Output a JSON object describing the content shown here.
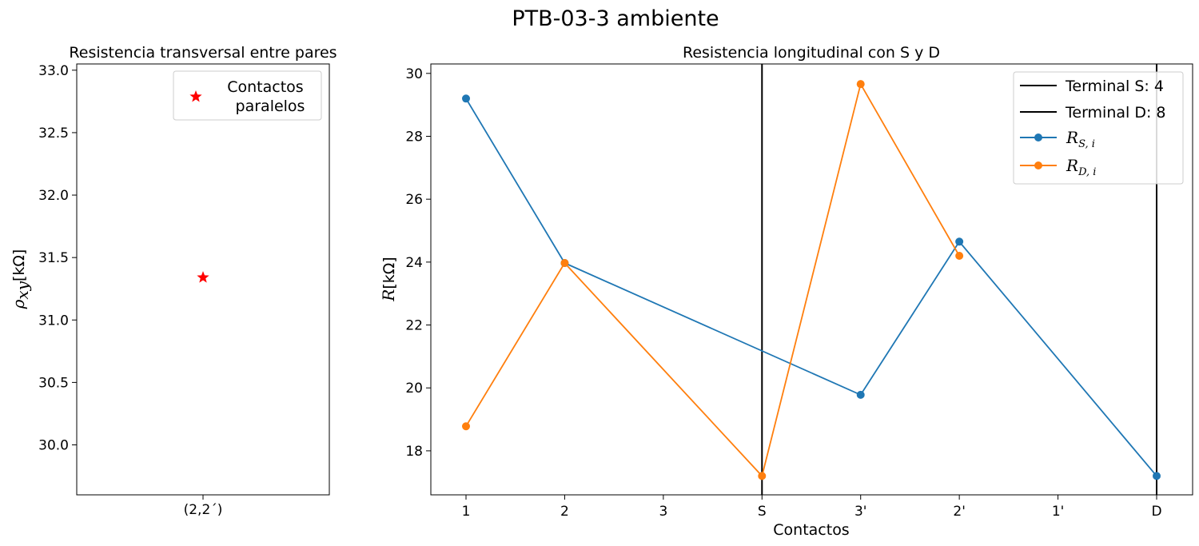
{
  "figure": {
    "suptitle": "PTB-03-3 ambiente"
  },
  "chart_data": [
    {
      "type": "scatter",
      "title": "Resistencia transversal entre pares",
      "xlabel": "",
      "ylabel": "ρxy[kΩ]",
      "ylabel_parts": {
        "symbol": "ρ",
        "sub": "xy",
        "unit": "[kΩ]"
      },
      "categories": [
        "(2,2´)"
      ],
      "ylim": [
        29.6,
        33.05
      ],
      "yticks": [
        "30.0",
        "30.5",
        "31.0",
        "31.5",
        "32.0",
        "32.5",
        "33.0"
      ],
      "series": [
        {
          "name": "Contactos\nparalelos",
          "name_lines": [
            "Contactos",
            "paralelos"
          ],
          "values": [
            31.34
          ],
          "color": "#ff0000",
          "marker": "star"
        }
      ],
      "grid": false,
      "legend": "top-right"
    },
    {
      "type": "line",
      "title": "Resistencia longitudinal con S y D",
      "xlabel": "Contactos",
      "ylabel": "R[kΩ]",
      "ylabel_parts": {
        "symbol": "R",
        "unit": "[kΩ]"
      },
      "categories": [
        "1",
        "2",
        "3",
        "S",
        "3'",
        "2'",
        "1'",
        "D"
      ],
      "ylim": [
        16.6,
        30.3
      ],
      "yticks": [
        "18",
        "20",
        "22",
        "24",
        "26",
        "28",
        "30"
      ],
      "vlines": [
        {
          "name": "Terminal S: 4",
          "at": "S",
          "color": "#000000"
        },
        {
          "name": "Terminal D: 8",
          "at": "D",
          "color": "#000000"
        }
      ],
      "series": [
        {
          "name": "R_{S,i}",
          "name_parts": {
            "main": "R",
            "sub": "S, i"
          },
          "color": "#1f77b4",
          "points": [
            [
              "1",
              29.2
            ],
            [
              "2",
              23.97
            ],
            [
              "3'",
              19.78
            ],
            [
              "2'",
              24.65
            ],
            [
              "D",
              17.2
            ]
          ]
        },
        {
          "name": "R_{D,i}",
          "name_parts": {
            "main": "R",
            "sub": "D, i"
          },
          "color": "#ff7f0e",
          "points": [
            [
              "1",
              18.78
            ],
            [
              "2",
              23.97
            ],
            [
              "S",
              17.2
            ],
            [
              "3'",
              29.66
            ],
            [
              "2'",
              24.2
            ]
          ]
        }
      ],
      "grid": false,
      "legend": "top-right"
    }
  ]
}
